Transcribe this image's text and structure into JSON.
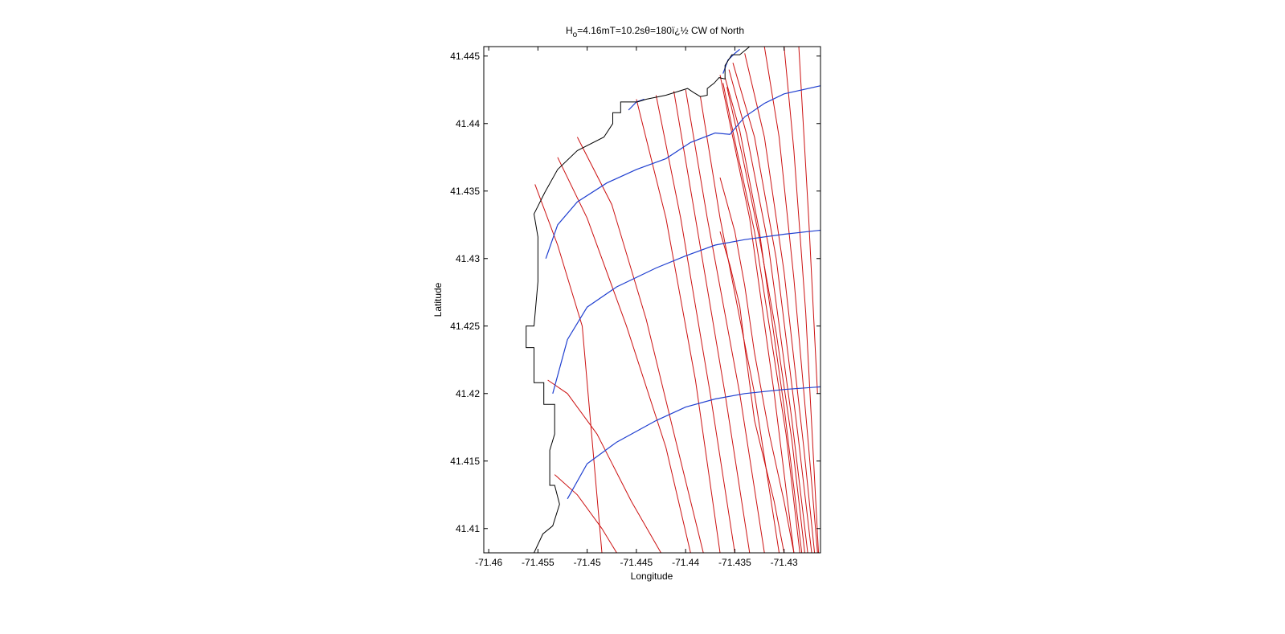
{
  "chart_data": {
    "type": "line",
    "title_main": "H",
    "title_sub": "o",
    "title_rest": "=4.16mT=10.2sθ=180ï¿½ CW of North",
    "xlabel": "Longitude",
    "ylabel": "Latitude",
    "xlim": [
      -71.4605,
      -71.4263
    ],
    "ylim": [
      41.4082,
      41.4457
    ],
    "xticks": [
      -71.46,
      -71.455,
      -71.45,
      -71.445,
      -71.44,
      -71.435,
      -71.43
    ],
    "xtick_labels": [
      "-71.46",
      "-71.455",
      "-71.45",
      "-71.445",
      "-71.44",
      "-71.435",
      "-71.43"
    ],
    "yticks": [
      41.41,
      41.415,
      41.42,
      41.425,
      41.43,
      41.435,
      41.44,
      41.445
    ],
    "ytick_labels": [
      "41.41",
      "41.415",
      "41.42",
      "41.425",
      "41.43",
      "41.435",
      "41.44",
      "41.445"
    ],
    "grid": false,
    "colors": {
      "coastline": "#000000",
      "wave_crests": "#1f3fd0",
      "wave_rays": "#cc1111"
    },
    "coastline": [
      [
        -71.4554,
        41.4082
      ],
      [
        -71.4545,
        41.4096
      ],
      [
        -71.4535,
        41.4102
      ],
      [
        -71.4528,
        41.4118
      ],
      [
        -71.4533,
        41.4132
      ],
      [
        -71.4538,
        41.4132
      ],
      [
        -71.4538,
        41.4158
      ],
      [
        -71.4533,
        41.417
      ],
      [
        -71.4533,
        41.4192
      ],
      [
        -71.4544,
        41.4192
      ],
      [
        -71.4544,
        41.4208
      ],
      [
        -71.4554,
        41.4208
      ],
      [
        -71.4554,
        41.4234
      ],
      [
        -71.4562,
        41.4234
      ],
      [
        -71.4562,
        41.425
      ],
      [
        -71.4554,
        41.425
      ],
      [
        -71.455,
        41.4283
      ],
      [
        -71.455,
        41.4316
      ],
      [
        -71.4554,
        41.4333
      ],
      [
        -71.4554,
        41.4333
      ],
      [
        -71.4543,
        41.4349
      ],
      [
        -71.453,
        41.4366
      ],
      [
        -71.451,
        41.438
      ],
      [
        -71.4483,
        41.439
      ],
      [
        -71.4474,
        41.44
      ],
      [
        -71.4474,
        41.4408
      ],
      [
        -71.4466,
        41.4408
      ],
      [
        -71.4466,
        41.4416
      ],
      [
        -71.4449,
        41.4416
      ],
      [
        -71.444,
        41.4418
      ],
      [
        -71.442,
        41.4421
      ],
      [
        -71.4398,
        41.4426
      ],
      [
        -71.4392,
        41.4423
      ],
      [
        -71.4385,
        41.442
      ],
      [
        -71.4378,
        41.4421
      ],
      [
        -71.4378,
        41.4426
      ],
      [
        -71.4371,
        41.443
      ],
      [
        -71.4366,
        41.4434
      ],
      [
        -71.436,
        41.4433
      ],
      [
        -71.436,
        41.4443
      ],
      [
        -71.4353,
        41.4451
      ],
      [
        -71.4345,
        41.4451
      ],
      [
        -71.4335,
        41.4457
      ]
    ],
    "wave_crests": [
      {
        "x": [
          -71.452,
          -71.45,
          -71.447,
          -71.443,
          -71.44,
          -71.437,
          -71.434,
          -71.43,
          -71.4263
        ],
        "y": [
          41.4122,
          41.4148,
          41.4164,
          41.418,
          41.419,
          41.4196,
          41.42,
          41.4203,
          41.4205
        ]
      },
      {
        "x": [
          -71.4535,
          -71.452,
          -71.45,
          -71.447,
          -71.443,
          -71.44,
          -71.437,
          -71.434,
          -71.43,
          -71.4263
        ],
        "y": [
          41.42,
          41.424,
          41.4264,
          41.4279,
          41.4293,
          41.4302,
          41.431,
          41.4314,
          41.4318,
          41.4321
        ]
      },
      {
        "x": [
          -71.4542,
          -71.453,
          -71.451,
          -71.448,
          -71.445,
          -71.442,
          -71.4395,
          -71.437,
          -71.4355,
          -71.434,
          -71.432,
          -71.43,
          -71.4263
        ],
        "y": [
          41.43,
          41.4325,
          41.4342,
          41.4356,
          41.4366,
          41.4374,
          41.4386,
          41.4393,
          41.4392,
          41.4405,
          41.4415,
          41.4422,
          41.4428
        ]
      },
      {
        "x": [
          -71.4458,
          -71.445,
          -71.4442
        ],
        "y": [
          41.441,
          41.4416,
          41.4418
        ]
      },
      {
        "x": [
          -71.4362,
          -71.4357,
          -71.435,
          -71.4345
        ],
        "y": [
          41.4437,
          41.4447,
          41.4452,
          41.4455
        ]
      }
    ],
    "wave_rays": [
      {
        "x": [
          -71.453,
          -71.45,
          -71.446,
          -71.442,
          -71.4395
        ],
        "y": [
          41.4375,
          41.433,
          41.425,
          41.416,
          41.4082
        ]
      },
      {
        "x": [
          -71.451,
          -71.4475,
          -71.444,
          -71.441,
          -71.4382
        ],
        "y": [
          41.439,
          41.434,
          41.4255,
          41.4165,
          41.4082
        ]
      },
      {
        "x": [
          -71.445,
          -71.442,
          -71.439,
          -71.4365
        ],
        "y": [
          41.4418,
          41.433,
          41.421,
          41.4082
        ]
      },
      {
        "x": [
          -71.443,
          -71.4405,
          -71.4375,
          -71.435
        ],
        "y": [
          41.4421,
          41.433,
          41.42,
          41.4082
        ]
      },
      {
        "x": [
          -71.4412,
          -71.439,
          -71.436,
          -71.4335
        ],
        "y": [
          41.4424,
          41.433,
          41.42,
          41.4082
        ]
      },
      {
        "x": [
          -71.44,
          -71.4378,
          -71.4345,
          -71.432
        ],
        "y": [
          41.4425,
          41.433,
          41.42,
          41.4082
        ]
      },
      {
        "x": [
          -71.4385,
          -71.4365,
          -71.433,
          -71.4305
        ],
        "y": [
          41.442,
          41.433,
          41.42,
          41.4082
        ]
      },
      {
        "x": [
          -71.454,
          -71.452,
          -71.449,
          -71.4455,
          -71.4425
        ],
        "y": [
          41.421,
          41.42,
          41.417,
          41.412,
          41.4082
        ]
      },
      {
        "x": [
          -71.4533,
          -71.451,
          -71.4485,
          -71.447
        ],
        "y": [
          41.414,
          41.4125,
          41.41,
          41.4082
        ]
      },
      {
        "x": [
          -71.4553,
          -71.453,
          -71.4505,
          -71.4485
        ],
        "y": [
          41.4355,
          41.431,
          41.425,
          41.4082
        ]
      },
      {
        "x": [
          -71.4365,
          -71.4355,
          -71.4335,
          -71.431,
          -71.429
        ],
        "y": [
          41.4436,
          41.44,
          41.433,
          41.42,
          41.4082
        ]
      },
      {
        "x": [
          -71.436,
          -71.4345,
          -71.4325,
          -71.43,
          -71.4282
        ],
        "y": [
          41.4434,
          41.4395,
          41.432,
          41.419,
          41.4082
        ]
      },
      {
        "x": [
          -71.4356,
          -71.4338,
          -71.4316,
          -71.4292,
          -71.4276
        ],
        "y": [
          41.444,
          41.4392,
          41.431,
          41.418,
          41.4082
        ]
      },
      {
        "x": [
          -71.4352,
          -71.433,
          -71.4308,
          -71.4286,
          -71.4272
        ],
        "y": [
          41.4445,
          41.439,
          41.43,
          41.417,
          41.4082
        ]
      },
      {
        "x": [
          -71.434,
          -71.432,
          -71.43,
          -71.428,
          -71.4269
        ],
        "y": [
          41.4452,
          41.439,
          41.429,
          41.416,
          41.4082
        ]
      },
      {
        "x": [
          -71.432,
          -71.4305,
          -71.429,
          -71.4275,
          -71.4266
        ],
        "y": [
          41.4457,
          41.439,
          41.4285,
          41.416,
          41.4082
        ]
      },
      {
        "x": [
          -71.43,
          -71.429,
          -71.4278,
          -71.4265
        ],
        "y": [
          41.4457,
          41.438,
          41.426,
          41.4082
        ]
      },
      {
        "x": [
          -71.4285,
          -71.4275,
          -71.4266
        ],
        "y": [
          41.4457,
          41.433,
          41.42
        ]
      },
      {
        "x": [
          -71.4365,
          -71.435,
          -71.434,
          -71.433,
          -71.4315,
          -71.43,
          -71.429
        ],
        "y": [
          41.436,
          41.432,
          41.428,
          41.423,
          41.417,
          41.412,
          41.4082
        ]
      },
      {
        "x": [
          -71.4365,
          -71.4355,
          -71.4345,
          -71.434,
          -71.433,
          -71.431,
          -71.43
        ],
        "y": [
          41.432,
          41.4295,
          41.4265,
          41.4235,
          41.418,
          41.412,
          41.4082
        ]
      },
      {
        "x": [
          -71.4362,
          -71.4348,
          -71.433,
          -71.4315,
          -71.4298,
          -71.4284
        ],
        "y": [
          41.443,
          41.438,
          41.432,
          41.425,
          41.417,
          41.4082
        ]
      },
      {
        "x": [
          -71.4358,
          -71.4342,
          -71.4325,
          -71.4308,
          -71.4292,
          -71.4279
        ],
        "y": [
          41.4427,
          41.4375,
          41.4315,
          41.4245,
          41.4165,
          41.4082
        ]
      }
    ]
  }
}
